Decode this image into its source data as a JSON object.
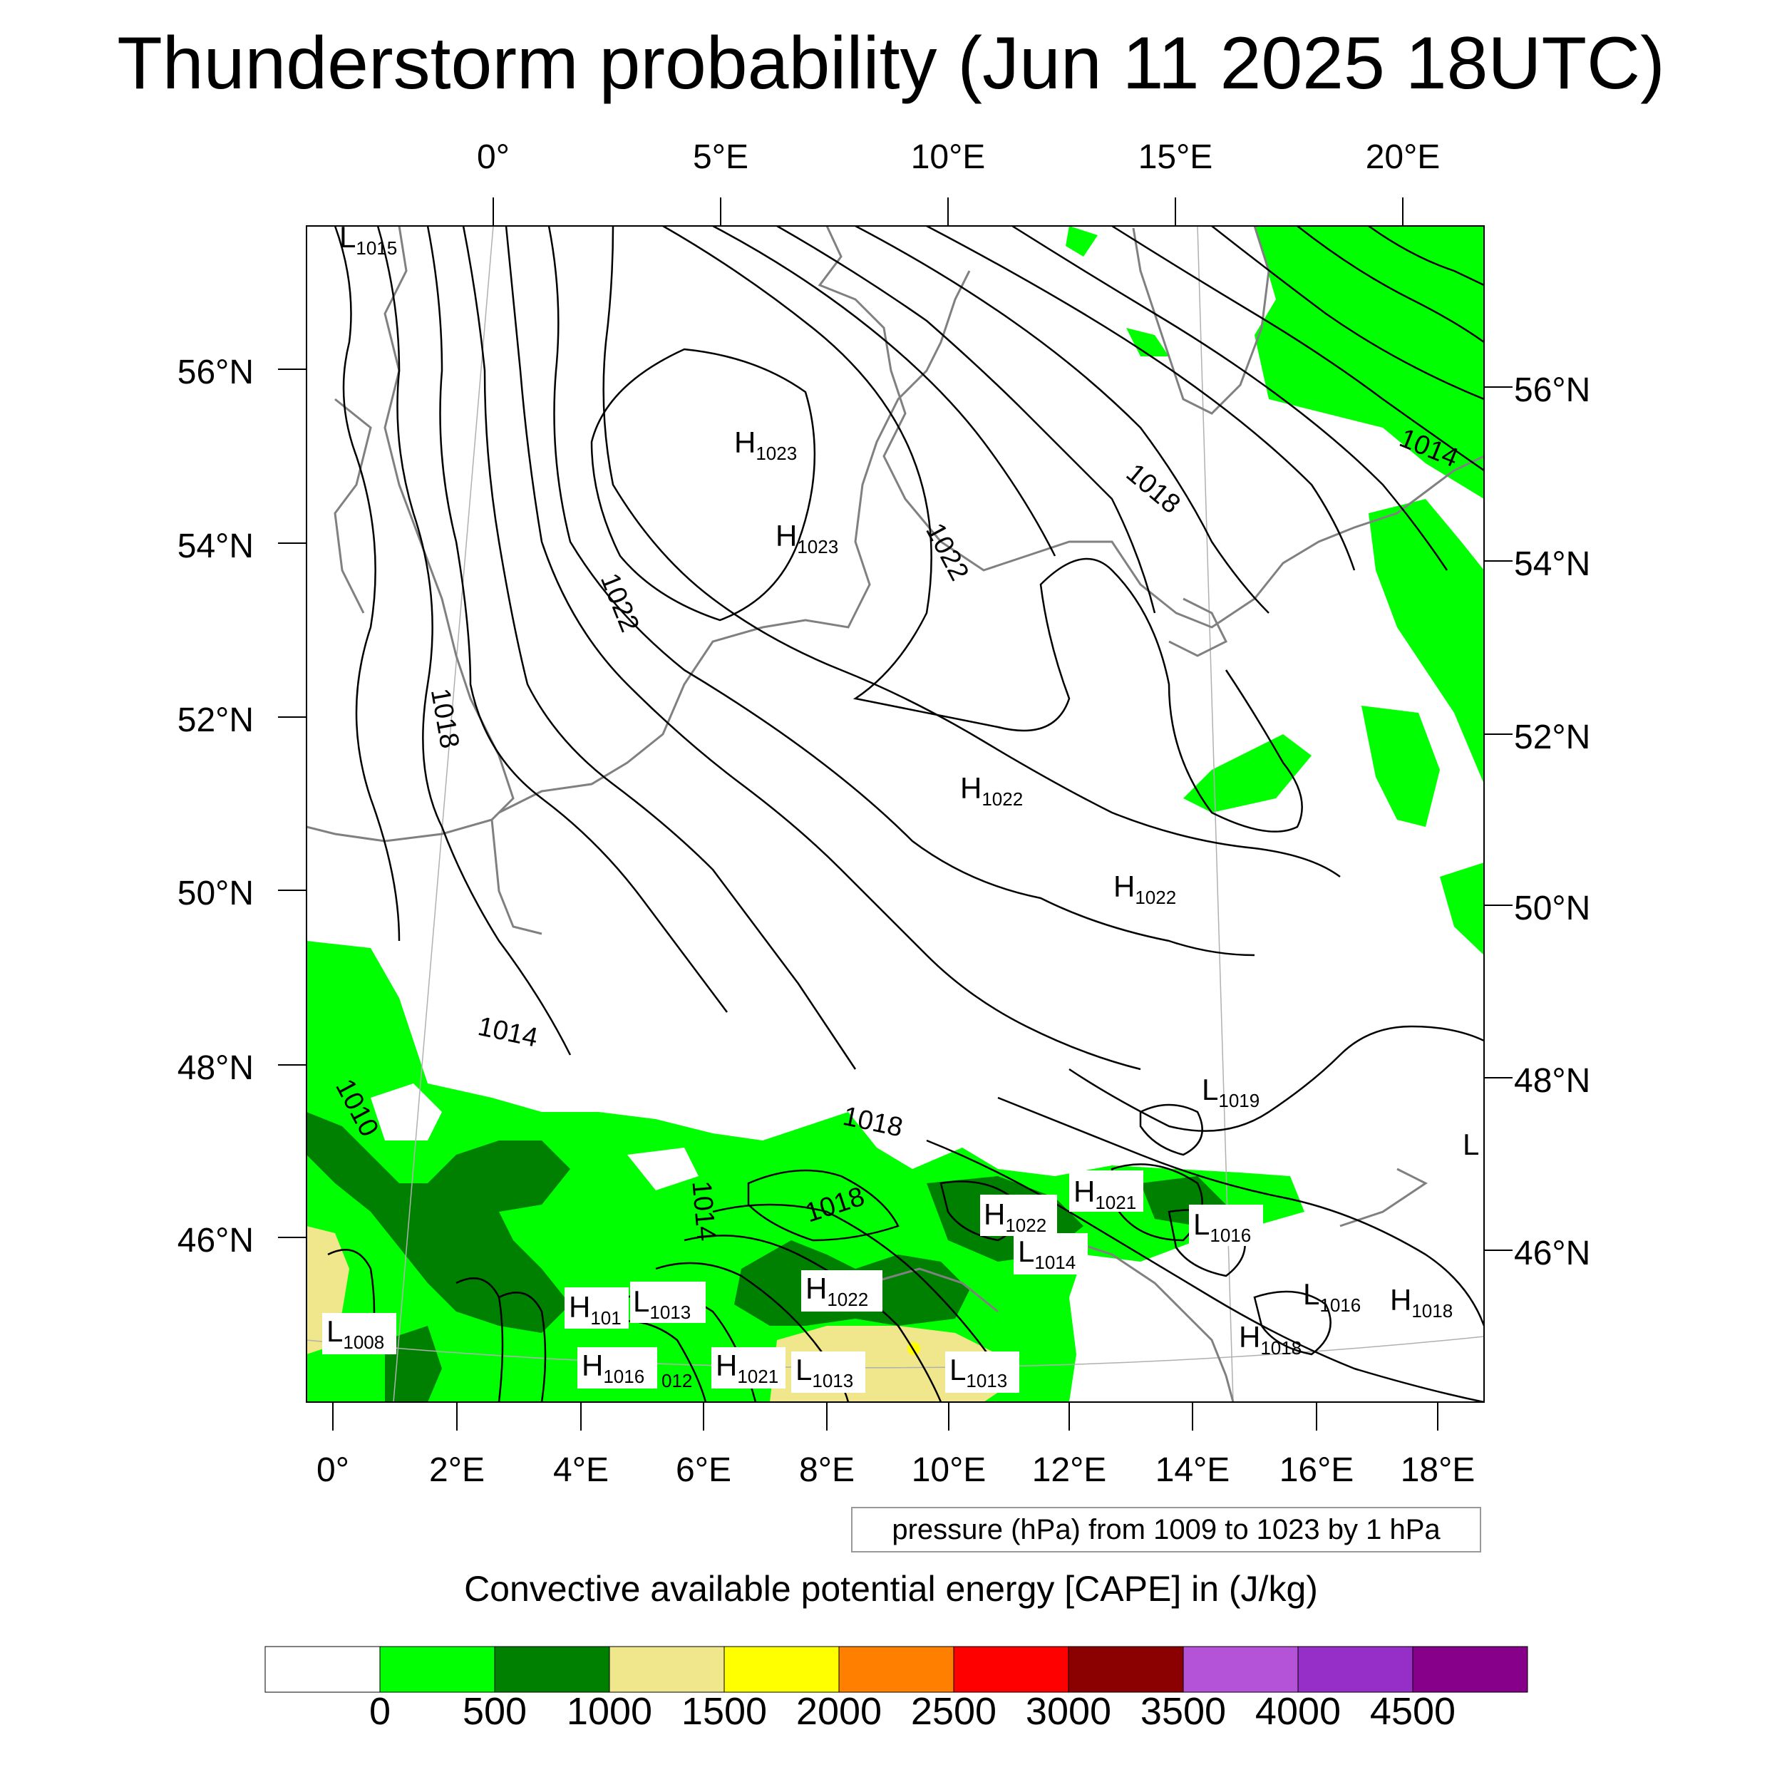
{
  "title": "Thunderstorm probability (Jun 11 2025 18UTC)",
  "map": {
    "top_lon_labels": [
      "0°",
      "5°E",
      "10°E",
      "15°E",
      "20°E"
    ],
    "bottom_lon_labels": [
      "0°",
      "2°E",
      "4°E",
      "6°E",
      "8°E",
      "10°E",
      "12°E",
      "14°E",
      "16°E",
      "18°E"
    ],
    "left_lat_labels": [
      "56°N",
      "54°N",
      "52°N",
      "50°N",
      "48°N",
      "46°N"
    ],
    "right_lat_labels": [
      "56°N",
      "54°N",
      "52°N",
      "50°N",
      "48°N",
      "46°N"
    ],
    "isobar_labels": [
      "1014",
      "1018",
      "1022",
      "1022",
      "1018",
      "1014",
      "1010",
      "1018",
      "1014",
      "1018"
    ],
    "pressure_centers": [
      {
        "type": "L",
        "value": "1015"
      },
      {
        "type": "H",
        "value": "1023"
      },
      {
        "type": "H",
        "value": "1023"
      },
      {
        "type": "H",
        "value": "1022"
      },
      {
        "type": "H",
        "value": "1022"
      },
      {
        "type": "L",
        "value": "1019"
      },
      {
        "type": "L",
        "value": ""
      },
      {
        "type": "H",
        "value": "1021"
      },
      {
        "type": "H",
        "value": "1022"
      },
      {
        "type": "L",
        "value": "1016"
      },
      {
        "type": "L",
        "value": "1014"
      },
      {
        "type": "H",
        "value": "1022"
      },
      {
        "type": "H",
        "value": "101"
      },
      {
        "type": "L",
        "value": "1013"
      },
      {
        "type": "L",
        "value": "1008"
      },
      {
        "type": "L",
        "value": "1016"
      },
      {
        "type": "H",
        "value": "1018"
      },
      {
        "type": "H",
        "value": "1018"
      },
      {
        "type": "H",
        "value": "1016"
      },
      {
        "type": "",
        "value": "012"
      },
      {
        "type": "H",
        "value": "1021"
      },
      {
        "type": "L",
        "value": "1013"
      },
      {
        "type": "L",
        "value": "1013"
      }
    ],
    "colors": {
      "isobar": "#000000",
      "coastline": "#808080",
      "grid": "#b0b0b0"
    }
  },
  "contour_info": "pressure (hPa) from 1009 to 1023 by 1 hPa",
  "colorbar": {
    "title": "Convective available potential energy [CAPE] in (J/kg)",
    "labels": [
      "0",
      "500",
      "1000",
      "1500",
      "2000",
      "2500",
      "3000",
      "3500",
      "4000",
      "4500"
    ],
    "colors": [
      "#ffffff",
      "#00ff00",
      "#008000",
      "#f0e68c",
      "#ffff00",
      "#ff8000",
      "#ff0000",
      "#8b0000",
      "#b452d8",
      "#962ec8",
      "#87008a"
    ]
  }
}
